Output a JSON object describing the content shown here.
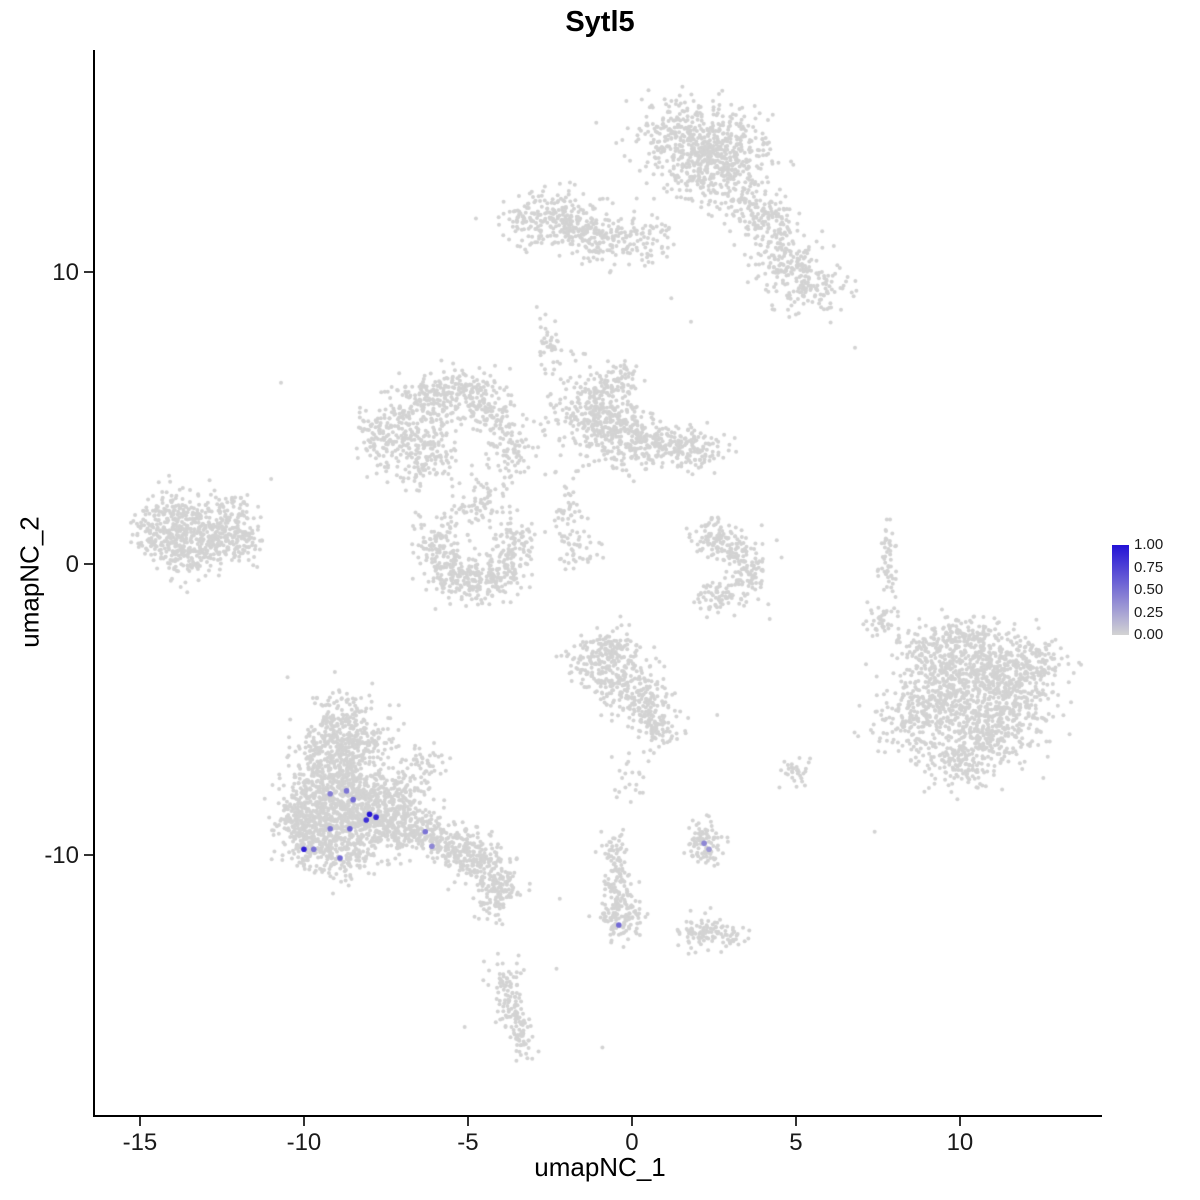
{
  "chart_data": {
    "type": "scatter",
    "title": "Sytl5",
    "xlabel": "umapNC_1",
    "ylabel": "umapNC_2",
    "xlim": [
      -16.37,
      14.27
    ],
    "ylim": [
      -18.92,
      17.62
    ],
    "grid": false,
    "x_ticks": [
      {
        "v": -15,
        "label": "-15"
      },
      {
        "v": -10,
        "label": "-10"
      },
      {
        "v": -5,
        "label": "-5"
      },
      {
        "v": 0,
        "label": "0"
      },
      {
        "v": 5,
        "label": "5"
      },
      {
        "v": 10,
        "label": "10"
      }
    ],
    "y_ticks": [
      {
        "v": -10,
        "label": "-10"
      },
      {
        "v": 0,
        "label": "0"
      },
      {
        "v": 10,
        "label": "10"
      }
    ],
    "legend": {
      "position": "right",
      "ticks": [
        "1.00",
        "0.75",
        "0.50",
        "0.25",
        "0.00"
      ],
      "min_value": 0.0,
      "max_value": 1.0,
      "min_color": "#d3d3d3",
      "max_color": "#2312d6"
    },
    "colors": {
      "base_point": "#d3d3d3",
      "background": "#ffffff",
      "axis": "#000000"
    },
    "point_style": {
      "base_radius": 2.0,
      "highlight_radius": 2.8,
      "seed": 42
    },
    "clusters": [
      {
        "name": "top-center",
        "parts": [
          [
            1.7,
            14.7,
            0.85,
            0.7,
            320
          ],
          [
            2.9,
            14.2,
            0.7,
            0.6,
            220
          ],
          [
            2.2,
            13.3,
            0.6,
            0.5,
            150
          ],
          [
            3.3,
            12.5,
            0.45,
            0.5,
            90
          ],
          [
            4.0,
            11.9,
            0.45,
            0.45,
            80
          ],
          [
            4.5,
            10.9,
            0.4,
            0.5,
            80
          ],
          [
            4.8,
            10.1,
            0.5,
            0.45,
            90
          ],
          [
            5.5,
            9.5,
            0.6,
            0.45,
            110
          ],
          [
            0.7,
            11.3,
            0.4,
            0.4,
            40
          ]
        ]
      },
      {
        "name": "top-left",
        "parts": [
          [
            -2.4,
            11.8,
            0.75,
            0.5,
            180
          ],
          [
            -1.4,
            11.4,
            0.6,
            0.45,
            130
          ],
          [
            -0.4,
            11.1,
            0.5,
            0.4,
            80
          ],
          [
            -3.2,
            11.9,
            0.3,
            0.3,
            40
          ]
        ]
      },
      {
        "name": "upper-mid-left",
        "parts": [
          [
            -6.8,
            4.6,
            0.65,
            0.75,
            240
          ],
          [
            -5.8,
            5.6,
            0.55,
            0.5,
            150
          ],
          [
            -4.8,
            5.9,
            0.5,
            0.4,
            100
          ],
          [
            -4.2,
            4.9,
            0.4,
            0.5,
            80
          ],
          [
            -3.7,
            3.9,
            0.35,
            0.5,
            70
          ],
          [
            -6.3,
            3.5,
            0.5,
            0.4,
            80
          ],
          [
            -7.8,
            4.3,
            0.3,
            0.5,
            50
          ]
        ]
      },
      {
        "name": "upper-mid-center",
        "parts": [
          [
            -1.2,
            5.2,
            0.65,
            0.75,
            280
          ],
          [
            -0.2,
            4.4,
            0.55,
            0.55,
            190
          ],
          [
            0.9,
            4.1,
            0.55,
            0.4,
            120
          ],
          [
            1.9,
            3.9,
            0.5,
            0.35,
            100
          ],
          [
            -0.5,
            6.3,
            0.4,
            0.3,
            60
          ]
        ]
      },
      {
        "name": "mid-left-crescent",
        "parts": [
          [
            -5.9,
            0.6,
            0.4,
            0.55,
            100
          ],
          [
            -5.4,
            -0.4,
            0.5,
            0.4,
            110
          ],
          [
            -4.6,
            -0.7,
            0.5,
            0.35,
            110
          ],
          [
            -3.8,
            -0.1,
            0.35,
            0.5,
            90
          ],
          [
            -3.5,
            0.9,
            0.3,
            0.4,
            60
          ],
          [
            -4.9,
            1.8,
            0.5,
            0.4,
            45
          ],
          [
            -4.4,
            2.5,
            0.4,
            0.4,
            35
          ]
        ]
      },
      {
        "name": "far-left",
        "parts": [
          [
            -13.9,
            1.5,
            0.6,
            0.55,
            220
          ],
          [
            -12.9,
            0.9,
            0.6,
            0.5,
            200
          ],
          [
            -13.6,
            0.3,
            0.5,
            0.4,
            130
          ],
          [
            -12.2,
            1.6,
            0.4,
            0.4,
            80
          ],
          [
            -11.8,
            0.6,
            0.3,
            0.35,
            50
          ],
          [
            -14.6,
            0.9,
            0.3,
            0.4,
            60
          ]
        ]
      },
      {
        "name": "mid-right-crescent",
        "parts": [
          [
            2.5,
            0.9,
            0.35,
            0.35,
            80
          ],
          [
            3.2,
            0.5,
            0.4,
            0.3,
            70
          ],
          [
            3.6,
            -0.4,
            0.3,
            0.4,
            70
          ],
          [
            2.7,
            -1.1,
            0.4,
            0.3,
            70
          ]
        ]
      },
      {
        "name": "right-strand",
        "parts": [
          [
            7.8,
            0.1,
            0.15,
            0.55,
            50
          ]
        ]
      },
      {
        "name": "lower-right-large",
        "parts": [
          [
            10.4,
            -3.4,
            0.8,
            0.7,
            330
          ],
          [
            11.5,
            -4.4,
            0.7,
            0.65,
            280
          ],
          [
            9.5,
            -4.7,
            0.7,
            0.65,
            280
          ],
          [
            10.8,
            -5.8,
            0.75,
            0.6,
            280
          ],
          [
            9.0,
            -3.0,
            0.5,
            0.5,
            110
          ],
          [
            12.3,
            -3.4,
            0.5,
            0.5,
            110
          ],
          [
            8.4,
            -5.6,
            0.5,
            0.55,
            110
          ],
          [
            9.9,
            -6.9,
            0.6,
            0.45,
            130
          ],
          [
            10.3,
            -2.4,
            0.55,
            0.35,
            80
          ],
          [
            7.6,
            -2.0,
            0.3,
            0.3,
            40
          ]
        ]
      },
      {
        "name": "lower-center",
        "parts": [
          [
            -1.0,
            -3.4,
            0.5,
            0.5,
            140
          ],
          [
            -0.2,
            -4.1,
            0.5,
            0.5,
            140
          ],
          [
            0.5,
            -4.9,
            0.4,
            0.4,
            100
          ],
          [
            0.9,
            -5.7,
            0.3,
            0.3,
            60
          ],
          [
            -0.6,
            -2.8,
            0.4,
            0.3,
            60
          ],
          [
            0.0,
            -7.3,
            0.35,
            0.6,
            25
          ]
        ]
      },
      {
        "name": "lower-left-large",
        "parts": [
          [
            -8.8,
            -5.2,
            0.5,
            0.45,
            110
          ],
          [
            -9.1,
            -6.2,
            0.55,
            0.5,
            150
          ],
          [
            -8.2,
            -6.1,
            0.5,
            0.45,
            120
          ],
          [
            -9.3,
            -7.4,
            0.65,
            0.6,
            280
          ],
          [
            -8.3,
            -7.9,
            0.65,
            0.6,
            280
          ],
          [
            -9.6,
            -8.7,
            0.55,
            0.55,
            230
          ],
          [
            -8.6,
            -9.1,
            0.55,
            0.55,
            230
          ],
          [
            -7.6,
            -8.7,
            0.5,
            0.55,
            190
          ],
          [
            -10.2,
            -8.8,
            0.4,
            0.5,
            110
          ],
          [
            -9.9,
            -9.8,
            0.4,
            0.4,
            90
          ],
          [
            -8.8,
            -10.2,
            0.5,
            0.35,
            90
          ],
          [
            -7.0,
            -9.0,
            0.5,
            0.45,
            140
          ],
          [
            -6.1,
            -9.4,
            0.5,
            0.4,
            130
          ],
          [
            -5.2,
            -9.8,
            0.45,
            0.4,
            120
          ],
          [
            -4.5,
            -10.3,
            0.4,
            0.35,
            100
          ],
          [
            -4.0,
            -10.9,
            0.35,
            0.3,
            70
          ],
          [
            -6.9,
            -7.7,
            0.4,
            0.4,
            70
          ],
          [
            -6.3,
            -6.8,
            0.35,
            0.4,
            40
          ],
          [
            -4.2,
            -11.6,
            0.3,
            0.35,
            60
          ]
        ]
      },
      {
        "name": "small-lower-mid",
        "parts": [
          [
            2.2,
            -9.6,
            0.3,
            0.35,
            90
          ]
        ]
      },
      {
        "name": "bottom-strand",
        "parts": [
          [
            -0.5,
            -9.9,
            0.2,
            0.4,
            40
          ],
          [
            -0.4,
            -11.0,
            0.25,
            0.5,
            60
          ],
          [
            -0.3,
            -12.1,
            0.35,
            0.45,
            120
          ]
        ]
      },
      {
        "name": "bottom-right-blob",
        "parts": [
          [
            2.1,
            -12.6,
            0.35,
            0.3,
            80
          ],
          [
            3.0,
            -12.8,
            0.3,
            0.2,
            30
          ]
        ]
      },
      {
        "name": "bottom-left-strand",
        "parts": [
          [
            -3.9,
            -14.4,
            0.25,
            0.4,
            50
          ],
          [
            -3.6,
            -15.4,
            0.25,
            0.45,
            60
          ],
          [
            -3.3,
            -16.3,
            0.2,
            0.35,
            40
          ]
        ]
      },
      {
        "name": "connectors",
        "parts": [
          [
            -2.5,
            7.4,
            0.2,
            0.5,
            40
          ],
          [
            -1.9,
            1.5,
            0.25,
            0.8,
            60
          ],
          [
            -1.6,
            0.3,
            0.3,
            0.3,
            25
          ],
          [
            5.0,
            -7.2,
            0.25,
            0.25,
            30
          ]
        ]
      }
    ],
    "singles": [
      [
        6.7,
        9.3
      ],
      [
        6.8,
        7.4
      ],
      [
        -10.7,
        6.2
      ],
      [
        5.8,
        11.4
      ],
      [
        -2.9,
        8.8
      ],
      [
        -2.8,
        8.4
      ],
      [
        1.2,
        9.1
      ],
      [
        1.8,
        8.3
      ],
      [
        0.3,
        10.6
      ],
      [
        2.6,
        -5.2
      ],
      [
        -2.2,
        -11.5
      ],
      [
        -2.3,
        -13.9
      ],
      [
        -5.1,
        -15.9
      ],
      [
        -0.9,
        -16.6
      ],
      [
        7.4,
        -9.2
      ],
      [
        4.2,
        -1.9
      ],
      [
        -11.0,
        2.9
      ],
      [
        -10.5,
        -3.9
      ]
    ],
    "highlights": [
      {
        "x": -9.2,
        "y": -7.9,
        "v": 0.45
      },
      {
        "x": -8.7,
        "y": -7.8,
        "v": 0.5
      },
      {
        "x": -8.5,
        "y": -8.1,
        "v": 0.55
      },
      {
        "x": -9.2,
        "y": -9.1,
        "v": 0.5
      },
      {
        "x": -8.6,
        "y": -9.1,
        "v": 0.6
      },
      {
        "x": -8.0,
        "y": -8.6,
        "v": 1.0
      },
      {
        "x": -7.8,
        "y": -8.7,
        "v": 0.9
      },
      {
        "x": -8.1,
        "y": -8.8,
        "v": 0.85
      },
      {
        "x": -10.0,
        "y": -9.8,
        "v": 0.95
      },
      {
        "x": -9.7,
        "y": -9.8,
        "v": 0.5
      },
      {
        "x": -8.9,
        "y": -10.1,
        "v": 0.55
      },
      {
        "x": -6.3,
        "y": -9.2,
        "v": 0.5
      },
      {
        "x": -6.1,
        "y": -9.7,
        "v": 0.4
      },
      {
        "x": 2.2,
        "y": -9.6,
        "v": 0.4
      },
      {
        "x": 2.35,
        "y": -9.8,
        "v": 0.3
      },
      {
        "x": -0.4,
        "y": -12.4,
        "v": 0.55
      }
    ]
  }
}
